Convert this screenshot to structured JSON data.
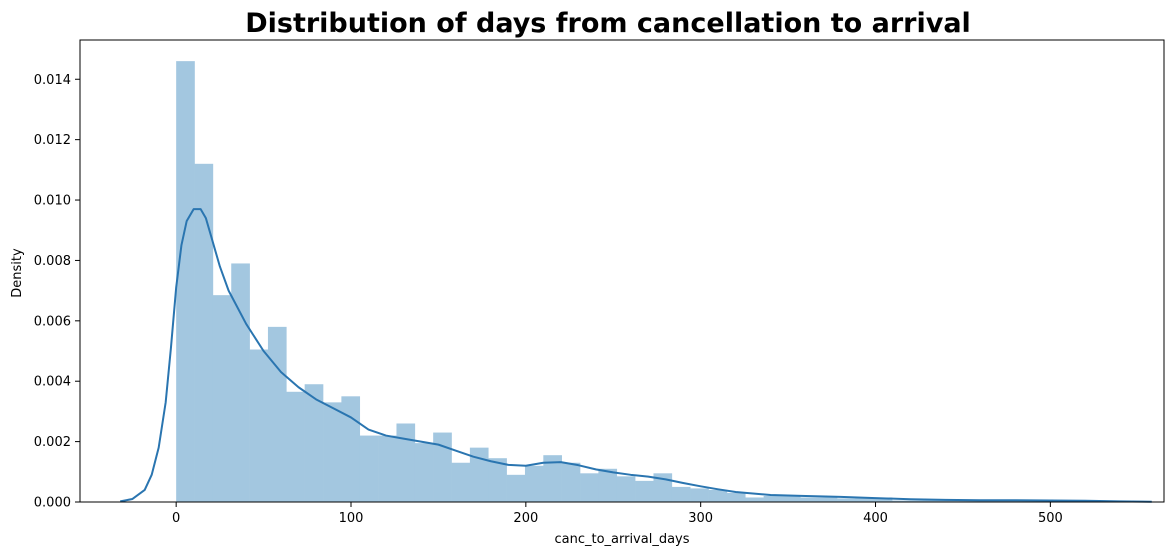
{
  "chart_data": {
    "type": "bar",
    "title": "Distribution of days from cancellation to arrival",
    "xlabel": "canc_to_arrival_days",
    "ylabel": "Density",
    "xlim": [
      -55,
      565
    ],
    "ylim": [
      0,
      0.0153
    ],
    "x_ticks": [
      0,
      100,
      200,
      300,
      400,
      500
    ],
    "x_tick_labels": [
      "0",
      "100",
      "200",
      "300",
      "400",
      "500"
    ],
    "y_ticks": [
      0,
      0.002,
      0.004,
      0.006,
      0.008,
      0.01,
      0.012,
      0.014
    ],
    "y_tick_labels": [
      "0.000",
      "0.002",
      "0.004",
      "0.006",
      "0.008",
      "0.010",
      "0.012",
      "0.014"
    ],
    "grid": false,
    "colors": {
      "bars": "#a3c7e0",
      "kde": "#2a75b0",
      "axes": "#000000"
    },
    "histogram": {
      "bin_width": 10.5,
      "bin_starts": [
        0,
        10.5,
        21,
        31.5,
        42,
        52.5,
        63,
        73.5,
        84,
        94.5,
        105,
        115.5,
        126,
        136.5,
        147,
        157.5,
        168,
        178.5,
        189,
        199.5,
        210,
        220.5,
        231,
        241.5,
        252,
        262.5,
        273,
        283.5,
        294,
        304.5,
        315,
        325.5,
        336,
        346.5,
        357,
        367.5,
        378,
        388.5,
        399,
        409.5,
        420,
        430.5,
        441,
        451.5,
        462,
        472.5,
        483,
        493.5,
        504,
        514.5
      ],
      "values": [
        0.0146,
        0.0112,
        0.00685,
        0.0079,
        0.00505,
        0.0058,
        0.00365,
        0.0039,
        0.0033,
        0.0035,
        0.0022,
        0.0022,
        0.0026,
        0.00195,
        0.0023,
        0.0013,
        0.0018,
        0.00145,
        0.0009,
        0.0012,
        0.00155,
        0.0013,
        0.00095,
        0.0011,
        0.00085,
        0.0007,
        0.00095,
        0.0005,
        0.00045,
        0.0004,
        0.0003,
        0.00015,
        0.0002,
        0.0002,
        0.00015,
        0.00015,
        0.00012,
        0.00015,
        0.00015,
        5e-05,
        5e-05,
        5e-05,
        5e-05,
        5e-05,
        5e-05,
        5e-05,
        5e-05,
        5e-05,
        5e-05,
        2e-05
      ]
    },
    "kde": {
      "x": [
        -32,
        -25,
        -18,
        -14,
        -10,
        -6,
        -3,
        0,
        3,
        6,
        10,
        14,
        17,
        20,
        25,
        30,
        40,
        50,
        60,
        70,
        80,
        90,
        100,
        110,
        120,
        130,
        140,
        150,
        160,
        170,
        180,
        190,
        200,
        210,
        220,
        230,
        240,
        250,
        260,
        270,
        280,
        290,
        300,
        310,
        320,
        340,
        360,
        380,
        400,
        420,
        440,
        460,
        480,
        500,
        520,
        540,
        558
      ],
      "y": [
        2e-05,
        0.0001,
        0.0004,
        0.0009,
        0.0018,
        0.0033,
        0.0051,
        0.0071,
        0.0085,
        0.0093,
        0.0097,
        0.0097,
        0.0094,
        0.0088,
        0.0078,
        0.007,
        0.0059,
        0.005,
        0.0043,
        0.0038,
        0.0034,
        0.0031,
        0.0028,
        0.0024,
        0.0022,
        0.0021,
        0.002,
        0.0019,
        0.0017,
        0.0015,
        0.00135,
        0.00123,
        0.0012,
        0.0013,
        0.00132,
        0.00122,
        0.00108,
        0.00098,
        0.0009,
        0.00084,
        0.00075,
        0.00063,
        0.00052,
        0.00042,
        0.00033,
        0.00023,
        0.0002,
        0.00017,
        0.00013,
        9e-05,
        7e-05,
        6e-05,
        6e-05,
        5e-05,
        4e-05,
        2e-05,
        1e-05
      ]
    }
  }
}
